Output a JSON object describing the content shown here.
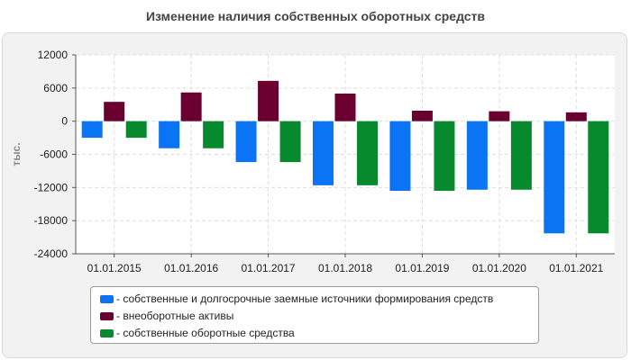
{
  "chart_data": {
    "type": "bar",
    "title": "Изменение наличия собственных оборотных средств",
    "ylabel": "тыс.",
    "xlabel": "",
    "categories": [
      "01.01.2015",
      "01.01.2016",
      "01.01.2017",
      "01.01.2018",
      "01.01.2019",
      "01.01.2020",
      "01.01.2021"
    ],
    "series": [
      {
        "name": "- собственные и долгосрочные заемные источники формирования средств",
        "color": "#0a74f5",
        "values": [
          -3000,
          -4900,
          -7400,
          -11600,
          -12600,
          -12400,
          -20300
        ]
      },
      {
        "name": "- внеоборотные активы",
        "color": "#6b0030",
        "values": [
          3500,
          5200,
          7300,
          5000,
          1900,
          1800,
          1600
        ]
      },
      {
        "name": "- собственные оборотные средства",
        "color": "#078a2d",
        "values": [
          -3000,
          -4900,
          -7400,
          -11600,
          -12600,
          -12400,
          -20300
        ]
      }
    ],
    "ylim": [
      -24000,
      12000
    ],
    "yticks": [
      12000,
      6000,
      0,
      -6000,
      -12000,
      -18000,
      -24000
    ],
    "grid": true,
    "legend_position": "bottom"
  }
}
